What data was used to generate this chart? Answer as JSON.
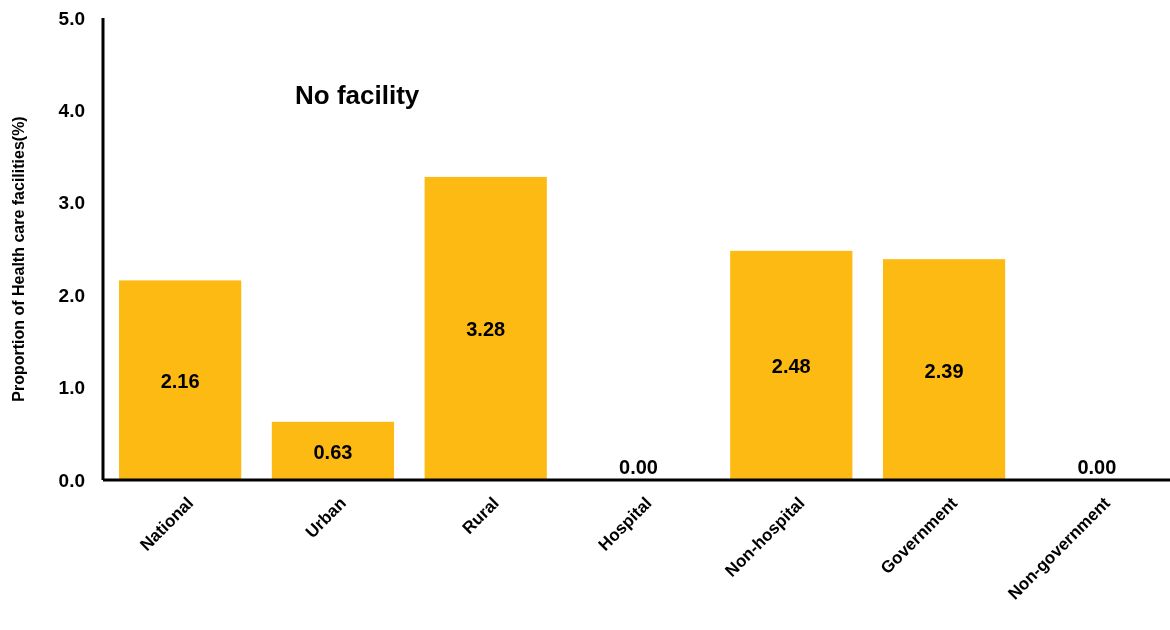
{
  "chart_data": {
    "type": "bar",
    "title": "No facility",
    "ylabel": "Proportion of Health care facilities(%)",
    "categories": [
      "National",
      "Urban",
      "Rural",
      "Hospital",
      "Non-hospital",
      "Government",
      "Non-government"
    ],
    "values": [
      2.16,
      0.63,
      3.28,
      0,
      2.48,
      2.39,
      0
    ],
    "value_labels": [
      "2.16",
      "0.63",
      "3.28",
      "0.00",
      "2.48",
      "2.39",
      "0.00"
    ],
    "color": "#fdba12",
    "ylim": [
      0,
      5
    ],
    "yticks": [
      {
        "value": 0,
        "label": "0.0"
      },
      {
        "value": 1,
        "label": "1.0"
      },
      {
        "value": 2,
        "label": "2.0"
      },
      {
        "value": 3,
        "label": "3.0"
      },
      {
        "value": 4,
        "label": "4.0"
      },
      {
        "value": 5,
        "label": "5.0"
      }
    ],
    "grid": false
  }
}
